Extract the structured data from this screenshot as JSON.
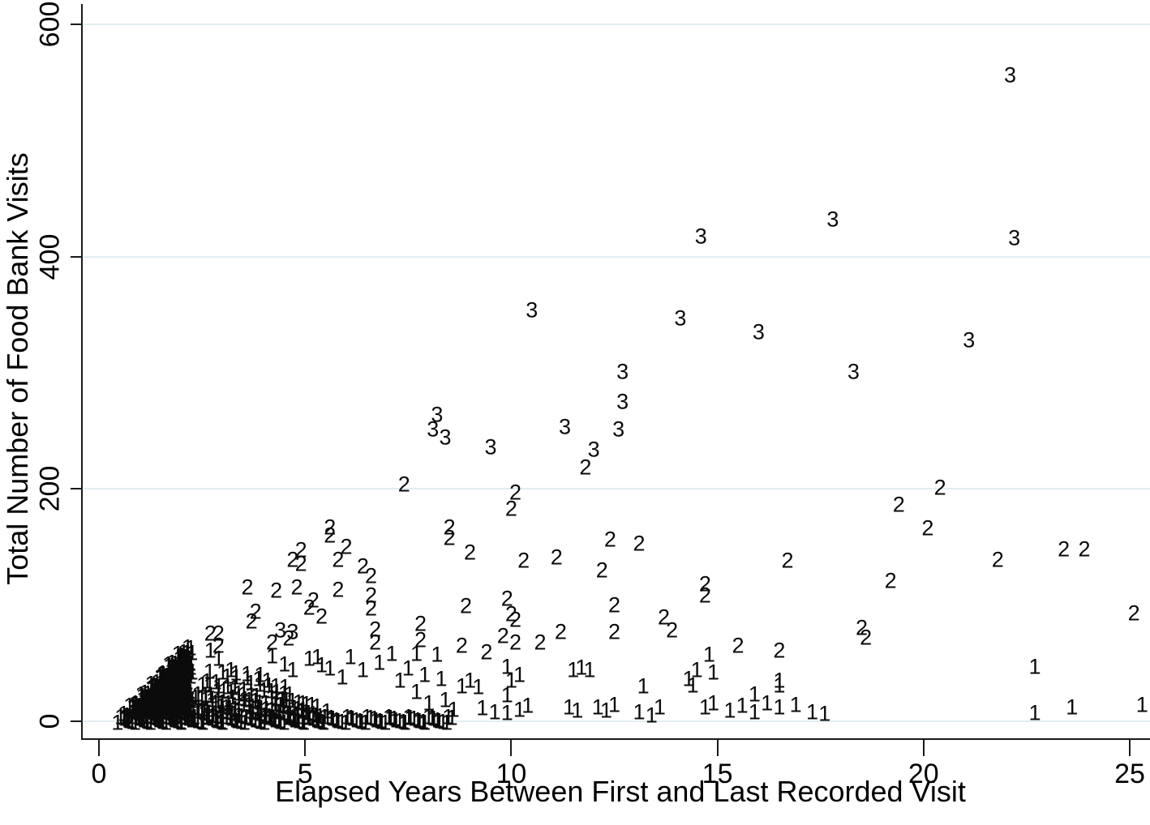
{
  "figure": {
    "background": "#ffffff",
    "colors": {
      "marker": "#0b0b0b",
      "gridline": "#e2eef1",
      "axis": "#1a1a1a"
    }
  },
  "axes": {
    "x_title": "Elapsed Years Between First and Last Recorded Visit",
    "y_title": "Total Number of Food Bank Visits"
  },
  "chart_data": {
    "type": "scatter",
    "title": "",
    "xlabel": "Elapsed Years Between First and Last Recorded Visit",
    "ylabel": "Total Number of Food Bank Visits",
    "xlim": [
      0,
      25.5
    ],
    "ylim": [
      0,
      600
    ],
    "x_ticks": [
      0,
      5,
      10,
      15,
      20,
      25
    ],
    "y_ticks": [
      0,
      200,
      400,
      600
    ],
    "grid": "horizontal gridlines at y ticks",
    "legend_position": "none",
    "marker_style": "plotted as text digits 1, 2, 3",
    "series": [
      {
        "name": "3",
        "points": [
          [
            22.1,
            556
          ],
          [
            17.8,
            432
          ],
          [
            22.2,
            416
          ],
          [
            14.6,
            417
          ],
          [
            10.5,
            354
          ],
          [
            14.1,
            347
          ],
          [
            16.0,
            335
          ],
          [
            21.1,
            328
          ],
          [
            18.3,
            301
          ],
          [
            12.7,
            301
          ],
          [
            12.7,
            275
          ],
          [
            8.2,
            264
          ],
          [
            8.1,
            251
          ],
          [
            8.4,
            244
          ],
          [
            11.3,
            253
          ],
          [
            12.6,
            251
          ],
          [
            9.5,
            236
          ],
          [
            12.0,
            234
          ],
          [
            4.4,
            78
          ],
          [
            4.7,
            77
          ]
        ]
      },
      {
        "name": "2",
        "points": [
          [
            7.4,
            204
          ],
          [
            10.1,
            197
          ],
          [
            10.0,
            183
          ],
          [
            11.8,
            218
          ],
          [
            20.4,
            201
          ],
          [
            19.4,
            186
          ],
          [
            20.1,
            166
          ],
          [
            12.4,
            156
          ],
          [
            13.1,
            153
          ],
          [
            16.7,
            138
          ],
          [
            21.8,
            139
          ],
          [
            23.4,
            148
          ],
          [
            23.9,
            148
          ],
          [
            19.2,
            121
          ],
          [
            25.1,
            93
          ],
          [
            18.5,
            80
          ],
          [
            18.6,
            72
          ],
          [
            14.7,
            118
          ],
          [
            14.7,
            108
          ],
          [
            8.5,
            167
          ],
          [
            8.5,
            158
          ],
          [
            9.0,
            145
          ],
          [
            10.3,
            138
          ],
          [
            11.1,
            141
          ],
          [
            12.2,
            130
          ],
          [
            5.6,
            167
          ],
          [
            5.6,
            160
          ],
          [
            6.0,
            150
          ],
          [
            4.9,
            147
          ],
          [
            4.7,
            139
          ],
          [
            4.9,
            135
          ],
          [
            5.8,
            139
          ],
          [
            6.4,
            133
          ],
          [
            6.6,
            125
          ],
          [
            4.3,
            112
          ],
          [
            4.8,
            115
          ],
          [
            5.2,
            104
          ],
          [
            5.8,
            113
          ],
          [
            6.6,
            108
          ],
          [
            3.6,
            115
          ],
          [
            3.8,
            94
          ],
          [
            3.7,
            86
          ],
          [
            2.7,
            75
          ],
          [
            2.9,
            75
          ],
          [
            2.9,
            65
          ],
          [
            4.6,
            71
          ],
          [
            4.2,
            68
          ],
          [
            5.1,
            98
          ],
          [
            5.4,
            90
          ],
          [
            8.9,
            99
          ],
          [
            7.8,
            84
          ],
          [
            7.8,
            70
          ],
          [
            8.8,
            65
          ],
          [
            9.4,
            59
          ],
          [
            9.9,
            105
          ],
          [
            10.0,
            92
          ],
          [
            10.1,
            87
          ],
          [
            9.8,
            73
          ],
          [
            10.1,
            68
          ],
          [
            10.7,
            68
          ],
          [
            11.2,
            77
          ],
          [
            12.5,
            100
          ],
          [
            12.5,
            77
          ],
          [
            13.7,
            89
          ],
          [
            13.9,
            78
          ],
          [
            15.5,
            65
          ],
          [
            16.5,
            61
          ],
          [
            6.6,
            97
          ],
          [
            6.7,
            79
          ],
          [
            6.7,
            68
          ]
        ]
      },
      {
        "name": "1",
        "points": [
          [
            22.7,
            47
          ],
          [
            23.6,
            12
          ],
          [
            25.3,
            14
          ],
          [
            22.7,
            7
          ],
          [
            14.8,
            57
          ],
          [
            14.9,
            42
          ],
          [
            14.5,
            44
          ],
          [
            14.3,
            36
          ],
          [
            14.4,
            31
          ],
          [
            16.5,
            31
          ],
          [
            15.9,
            23
          ],
          [
            7.7,
            58
          ],
          [
            8.2,
            57
          ],
          [
            9.9,
            47
          ],
          [
            10.2,
            40
          ],
          [
            10.0,
            35
          ],
          [
            9.9,
            22
          ],
          [
            11.5,
            44
          ],
          [
            11.7,
            46
          ],
          [
            11.9,
            44
          ],
          [
            11.4,
            12
          ],
          [
            11.6,
            9
          ],
          [
            12.1,
            12
          ],
          [
            12.3,
            9
          ],
          [
            12.5,
            14
          ],
          [
            13.2,
            30
          ],
          [
            13.1,
            8
          ],
          [
            13.4,
            5
          ],
          [
            13.6,
            12
          ],
          [
            14.7,
            12
          ],
          [
            14.9,
            15
          ],
          [
            15.3,
            9
          ],
          [
            15.6,
            13
          ],
          [
            15.9,
            8
          ],
          [
            16.2,
            15
          ],
          [
            16.5,
            12
          ],
          [
            16.9,
            14
          ],
          [
            17.3,
            8
          ],
          [
            17.6,
            6
          ],
          [
            2.7,
            61
          ],
          [
            2.9,
            54
          ],
          [
            3.2,
            44
          ],
          [
            4.2,
            56
          ],
          [
            4.5,
            49
          ],
          [
            4.7,
            44
          ],
          [
            5.1,
            54
          ],
          [
            5.4,
            48
          ],
          [
            8.3,
            36
          ],
          [
            8.8,
            30
          ],
          [
            9.0,
            35
          ],
          [
            9.2,
            29
          ],
          [
            9.3,
            11
          ],
          [
            9.6,
            8
          ],
          [
            9.9,
            7
          ],
          [
            10.2,
            10
          ],
          [
            10.4,
            13
          ],
          [
            7.9,
            40
          ],
          [
            7.7,
            25
          ],
          [
            8.0,
            15
          ],
          [
            8.6,
            10
          ],
          [
            8.4,
            18
          ],
          [
            6.1,
            55
          ],
          [
            6.4,
            44
          ],
          [
            6.8,
            50
          ],
          [
            7.1,
            58
          ],
          [
            7.3,
            35
          ],
          [
            7.5,
            45
          ],
          [
            5.9,
            38
          ],
          [
            5.6,
            45
          ],
          [
            5.3,
            55
          ],
          [
            16.5,
            35
          ]
        ]
      }
    ],
    "dense_runs": [
      {
        "marker": "1",
        "y": 1,
        "x_start": 0.47,
        "x_end": 2.25,
        "step": 0.055
      },
      {
        "marker": "1",
        "y": 6,
        "x_start": 0.61,
        "x_end": 2.25,
        "step": 0.055
      },
      {
        "marker": "1",
        "y": 11,
        "x_start": 0.74,
        "x_end": 2.25,
        "step": 0.055
      },
      {
        "marker": "1",
        "y": 16,
        "x_start": 0.87,
        "x_end": 2.25,
        "step": 0.055
      },
      {
        "marker": "1",
        "y": 21,
        "x_start": 1.0,
        "x_end": 2.25,
        "step": 0.055
      },
      {
        "marker": "1",
        "y": 26,
        "x_start": 1.13,
        "x_end": 2.25,
        "step": 0.055
      },
      {
        "marker": "1",
        "y": 31,
        "x_start": 1.27,
        "x_end": 2.25,
        "step": 0.055
      },
      {
        "marker": "1",
        "y": 36,
        "x_start": 1.4,
        "x_end": 2.25,
        "step": 0.055
      },
      {
        "marker": "1",
        "y": 41,
        "x_start": 1.53,
        "x_end": 2.25,
        "step": 0.055
      },
      {
        "marker": "1",
        "y": 46,
        "x_start": 1.66,
        "x_end": 2.25,
        "step": 0.055
      },
      {
        "marker": "1",
        "y": 51,
        "x_start": 1.79,
        "x_end": 2.25,
        "step": 0.055
      },
      {
        "marker": "1",
        "y": 56,
        "x_start": 1.92,
        "x_end": 2.25,
        "step": 0.055
      },
      {
        "marker": "1",
        "y": 61,
        "x_start": 2.05,
        "x_end": 2.25,
        "step": 0.055
      },
      {
        "marker": "1",
        "y": 1,
        "x_start": 2.25,
        "x_end": 8.6,
        "step": 0.07
      },
      {
        "marker": "1",
        "y": 6,
        "x_start": 2.3,
        "x_end": 5.6,
        "step": 0.09
      },
      {
        "marker": "1",
        "y": 12,
        "x_start": 2.3,
        "x_end": 5.3,
        "step": 0.11
      },
      {
        "marker": "1",
        "y": 18,
        "x_start": 2.35,
        "x_end": 5.0,
        "step": 0.13
      },
      {
        "marker": "1",
        "y": 24,
        "x_start": 2.4,
        "x_end": 4.7,
        "step": 0.16
      },
      {
        "marker": "1",
        "y": 30,
        "x_start": 2.5,
        "x_end": 4.5,
        "step": 0.2
      },
      {
        "marker": "1",
        "y": 36,
        "x_start": 2.6,
        "x_end": 4.3,
        "step": 0.25
      },
      {
        "marker": "1",
        "y": 42,
        "x_start": 2.7,
        "x_end": 4.1,
        "step": 0.3
      }
    ]
  }
}
